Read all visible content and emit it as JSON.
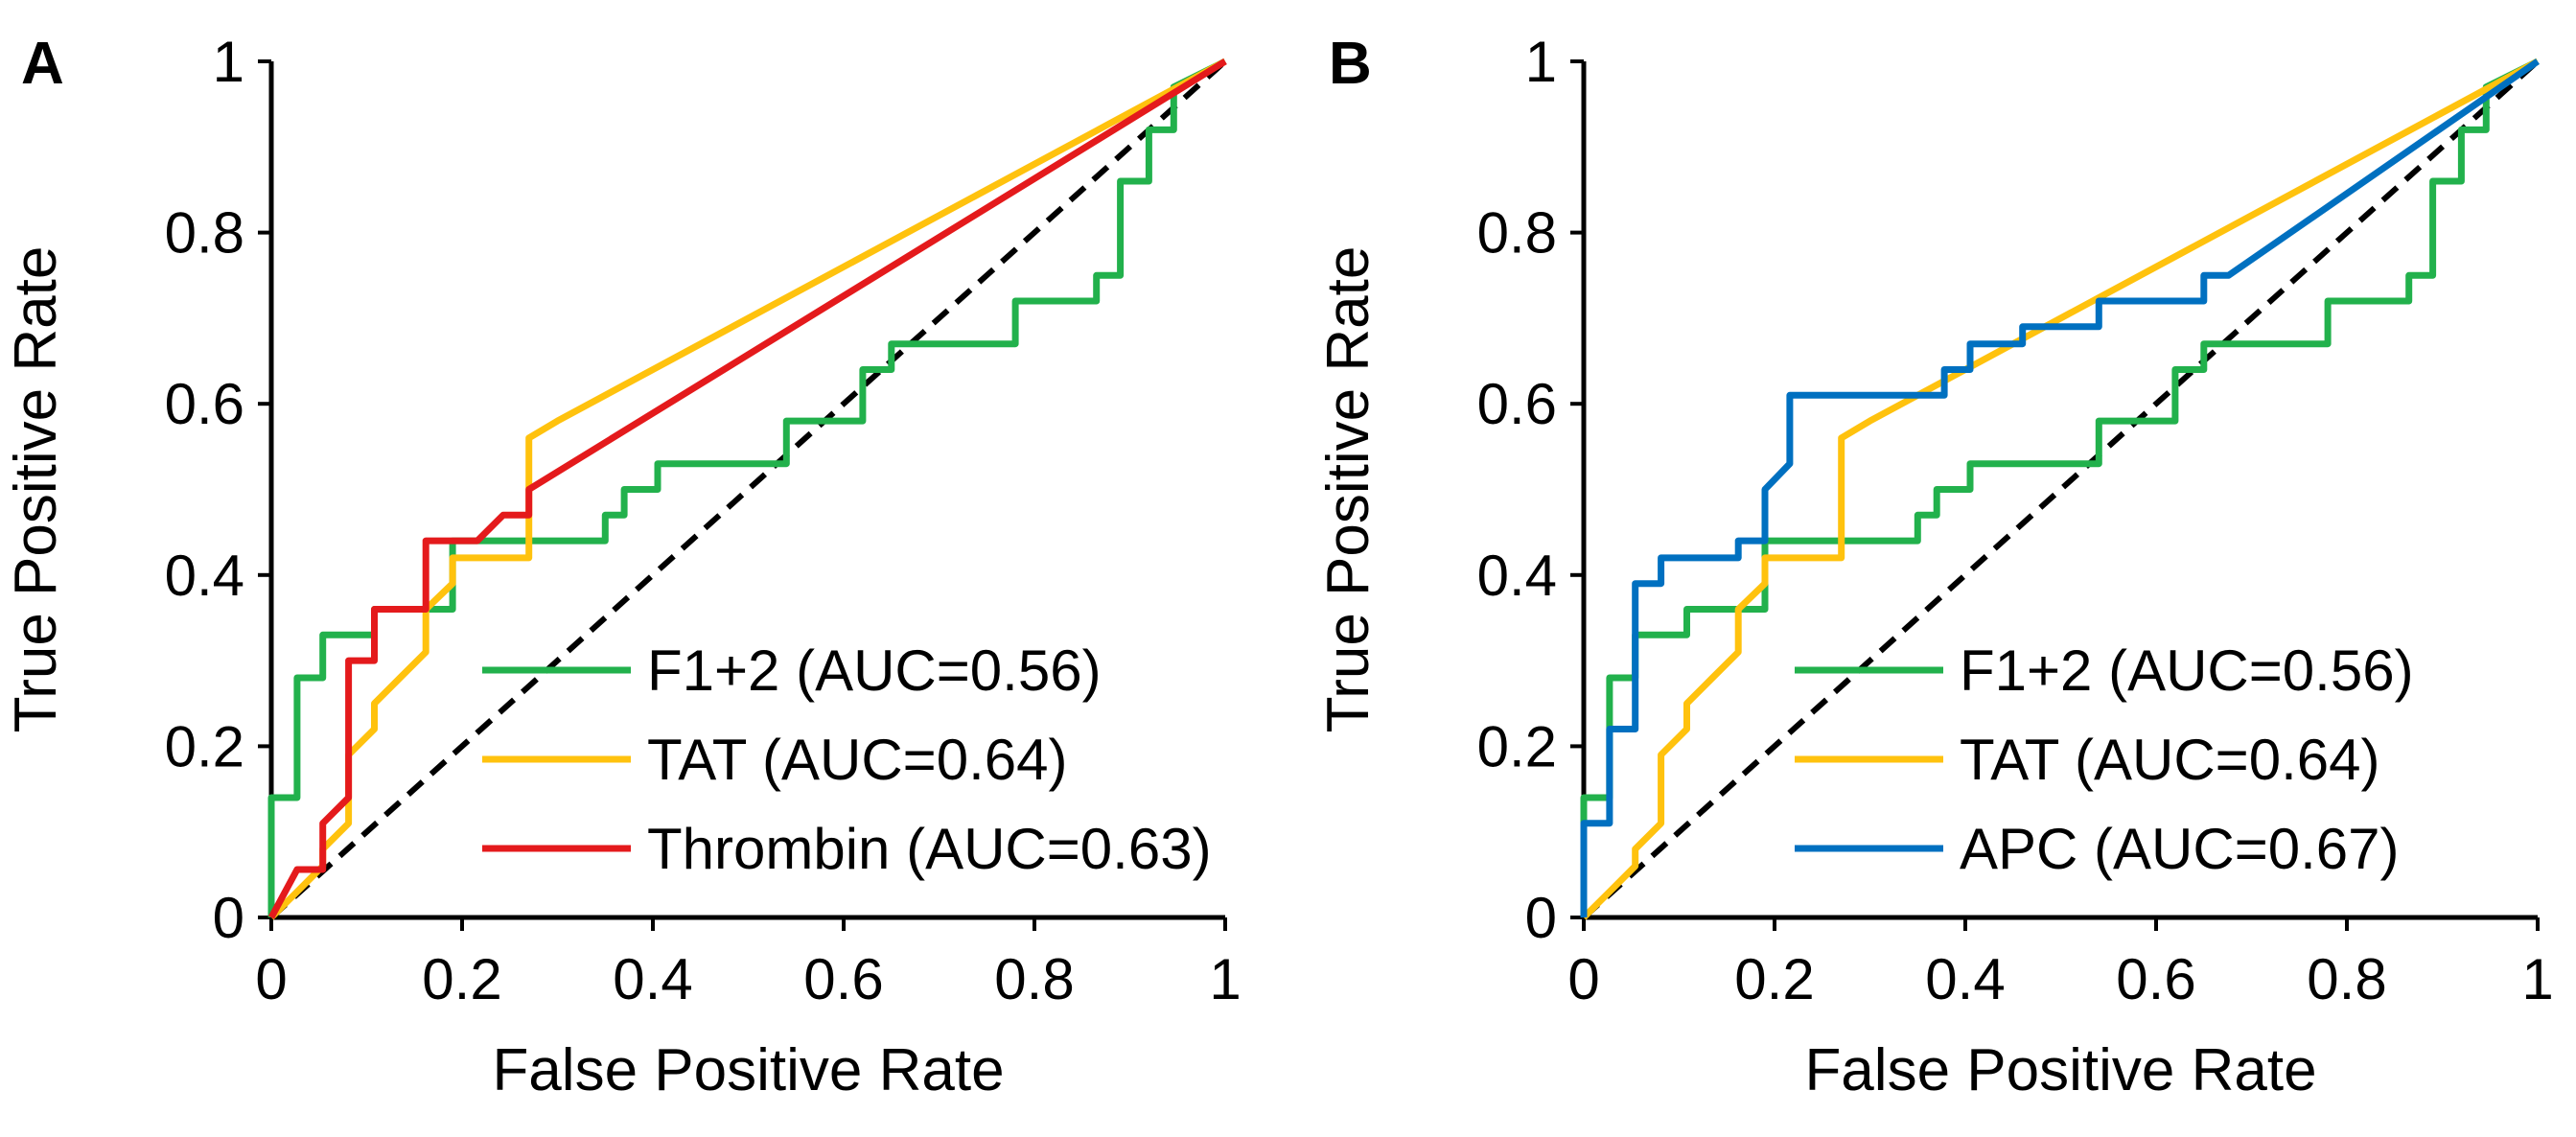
{
  "chart_data": [
    {
      "type": "line",
      "panel": "A",
      "xlabel": "False Positive Rate",
      "ylabel": "True Positive Rate",
      "xlim": [
        0,
        1
      ],
      "ylim": [
        0,
        1
      ],
      "xticks": [
        "0",
        "0.2",
        "0.4",
        "0.6",
        "0.8",
        "1"
      ],
      "yticks": [
        "0",
        "0.2",
        "0.4",
        "0.6",
        "0.8",
        "1"
      ],
      "grid": false,
      "legend_position": "bottom-right",
      "diagonal": {
        "style": "dashed",
        "color": "#000000",
        "points": [
          [
            0,
            0
          ],
          [
            1,
            1
          ]
        ]
      },
      "series": [
        {
          "name": "F1+2 (AUC=0.56)",
          "color": "#22B14C",
          "points": [
            [
              0,
              0
            ],
            [
              0,
              0.14
            ],
            [
              0.027,
              0.14
            ],
            [
              0.027,
              0.28
            ],
            [
              0.054,
              0.28
            ],
            [
              0.054,
              0.33
            ],
            [
              0.108,
              0.33
            ],
            [
              0.108,
              0.36
            ],
            [
              0.19,
              0.36
            ],
            [
              0.19,
              0.44
            ],
            [
              0.35,
              0.44
            ],
            [
              0.35,
              0.47
            ],
            [
              0.37,
              0.47
            ],
            [
              0.37,
              0.5
            ],
            [
              0.405,
              0.5
            ],
            [
              0.405,
              0.53
            ],
            [
              0.54,
              0.53
            ],
            [
              0.54,
              0.58
            ],
            [
              0.62,
              0.58
            ],
            [
              0.62,
              0.64
            ],
            [
              0.65,
              0.64
            ],
            [
              0.65,
              0.67
            ],
            [
              0.78,
              0.67
            ],
            [
              0.78,
              0.72
            ],
            [
              0.865,
              0.72
            ],
            [
              0.865,
              0.75
            ],
            [
              0.89,
              0.75
            ],
            [
              0.89,
              0.86
            ],
            [
              0.92,
              0.86
            ],
            [
              0.92,
              0.92
            ],
            [
              0.946,
              0.92
            ],
            [
              0.946,
              0.97
            ],
            [
              1,
              1
            ]
          ]
        },
        {
          "name": "TAT (AUC=0.64)",
          "color": "#FFC20E",
          "points": [
            [
              0,
              0
            ],
            [
              0.027,
              0.03
            ],
            [
              0.054,
              0.06
            ],
            [
              0.054,
              0.08
            ],
            [
              0.081,
              0.11
            ],
            [
              0.081,
              0.19
            ],
            [
              0.108,
              0.22
            ],
            [
              0.108,
              0.25
            ],
            [
              0.135,
              0.28
            ],
            [
              0.162,
              0.31
            ],
            [
              0.162,
              0.36
            ],
            [
              0.19,
              0.39
            ],
            [
              0.19,
              0.42
            ],
            [
              0.27,
              0.42
            ],
            [
              0.27,
              0.56
            ],
            [
              0.3,
              0.58
            ],
            [
              1,
              1
            ]
          ]
        },
        {
          "name": "Thrombin (AUC=0.63)",
          "color": "#E41A1C",
          "points": [
            [
              0,
              0
            ],
            [
              0.027,
              0.056
            ],
            [
              0.054,
              0.056
            ],
            [
              0.054,
              0.11
            ],
            [
              0.081,
              0.14
            ],
            [
              0.081,
              0.3
            ],
            [
              0.108,
              0.3
            ],
            [
              0.108,
              0.36
            ],
            [
              0.162,
              0.36
            ],
            [
              0.162,
              0.44
            ],
            [
              0.216,
              0.44
            ],
            [
              0.243,
              0.47
            ],
            [
              0.27,
              0.47
            ],
            [
              0.27,
              0.5
            ],
            [
              1,
              1
            ]
          ]
        }
      ]
    },
    {
      "type": "line",
      "panel": "B",
      "xlabel": "False Positive Rate",
      "ylabel": "True Positive Rate",
      "xlim": [
        0,
        1
      ],
      "ylim": [
        0,
        1
      ],
      "xticks": [
        "0",
        "0.2",
        "0.4",
        "0.6",
        "0.8",
        "1"
      ],
      "yticks": [
        "0",
        "0.2",
        "0.4",
        "0.6",
        "0.8",
        "1"
      ],
      "grid": false,
      "legend_position": "bottom-right",
      "diagonal": {
        "style": "dashed",
        "color": "#000000",
        "points": [
          [
            0,
            0
          ],
          [
            1,
            1
          ]
        ]
      },
      "series": [
        {
          "name": "F1+2 (AUC=0.56)",
          "color": "#22B14C",
          "points": [
            [
              0,
              0
            ],
            [
              0,
              0.14
            ],
            [
              0.027,
              0.14
            ],
            [
              0.027,
              0.28
            ],
            [
              0.054,
              0.28
            ],
            [
              0.054,
              0.33
            ],
            [
              0.108,
              0.33
            ],
            [
              0.108,
              0.36
            ],
            [
              0.19,
              0.36
            ],
            [
              0.19,
              0.44
            ],
            [
              0.35,
              0.44
            ],
            [
              0.35,
              0.47
            ],
            [
              0.37,
              0.47
            ],
            [
              0.37,
              0.5
            ],
            [
              0.405,
              0.5
            ],
            [
              0.405,
              0.53
            ],
            [
              0.54,
              0.53
            ],
            [
              0.54,
              0.58
            ],
            [
              0.62,
              0.58
            ],
            [
              0.62,
              0.64
            ],
            [
              0.65,
              0.64
            ],
            [
              0.65,
              0.67
            ],
            [
              0.78,
              0.67
            ],
            [
              0.78,
              0.72
            ],
            [
              0.865,
              0.72
            ],
            [
              0.865,
              0.75
            ],
            [
              0.89,
              0.75
            ],
            [
              0.89,
              0.86
            ],
            [
              0.92,
              0.86
            ],
            [
              0.92,
              0.92
            ],
            [
              0.946,
              0.92
            ],
            [
              0.946,
              0.97
            ],
            [
              1,
              1
            ]
          ]
        },
        {
          "name": "TAT (AUC=0.64)",
          "color": "#FFC20E",
          "points": [
            [
              0,
              0
            ],
            [
              0.027,
              0.03
            ],
            [
              0.054,
              0.06
            ],
            [
              0.054,
              0.08
            ],
            [
              0.081,
              0.11
            ],
            [
              0.081,
              0.19
            ],
            [
              0.108,
              0.22
            ],
            [
              0.108,
              0.25
            ],
            [
              0.135,
              0.28
            ],
            [
              0.162,
              0.31
            ],
            [
              0.162,
              0.36
            ],
            [
              0.19,
              0.39
            ],
            [
              0.19,
              0.42
            ],
            [
              0.27,
              0.42
            ],
            [
              0.27,
              0.56
            ],
            [
              0.3,
              0.58
            ],
            [
              1,
              1
            ]
          ]
        },
        {
          "name": "APC (AUC=0.67)",
          "color": "#0070C0",
          "points": [
            [
              0,
              0
            ],
            [
              0,
              0.11
            ],
            [
              0.027,
              0.11
            ],
            [
              0.027,
              0.22
            ],
            [
              0.054,
              0.22
            ],
            [
              0.054,
              0.39
            ],
            [
              0.081,
              0.39
            ],
            [
              0.081,
              0.42
            ],
            [
              0.162,
              0.42
            ],
            [
              0.162,
              0.44
            ],
            [
              0.19,
              0.44
            ],
            [
              0.19,
              0.5
            ],
            [
              0.216,
              0.53
            ],
            [
              0.216,
              0.61
            ],
            [
              0.378,
              0.61
            ],
            [
              0.378,
              0.64
            ],
            [
              0.405,
              0.64
            ],
            [
              0.405,
              0.67
            ],
            [
              0.46,
              0.67
            ],
            [
              0.46,
              0.69
            ],
            [
              0.54,
              0.69
            ],
            [
              0.54,
              0.72
            ],
            [
              0.65,
              0.72
            ],
            [
              0.65,
              0.75
            ],
            [
              0.676,
              0.75
            ],
            [
              1,
              1
            ]
          ]
        }
      ]
    }
  ]
}
